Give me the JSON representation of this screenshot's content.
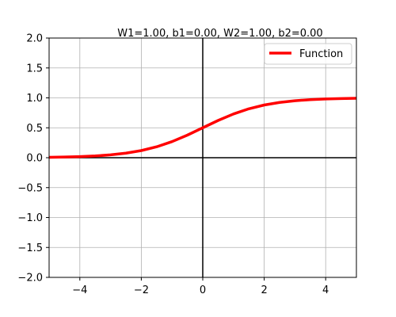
{
  "chart_data": {
    "type": "line",
    "title": "W1=1.00, b1=0.00, W2=1.00, b2=0.00",
    "xlabel": "",
    "ylabel": "",
    "xlim": [
      -5,
      5
    ],
    "ylim": [
      -2,
      2
    ],
    "x_ticks": [
      -4,
      -2,
      0,
      2,
      4
    ],
    "y_ticks": [
      -2.0,
      -1.5,
      -1.0,
      -0.5,
      0.0,
      0.5,
      1.0,
      1.5,
      2.0
    ],
    "x_tick_labels": [
      "−4",
      "−2",
      "0",
      "2",
      "4"
    ],
    "y_tick_labels": [
      "−2.0",
      "−1.5",
      "−1.0",
      "−0.5",
      "0.0",
      "0.5",
      "1.0",
      "1.5",
      "2.0"
    ],
    "grid": true,
    "legend_position": "top-right",
    "series": [
      {
        "name": "Function",
        "color": "#ff0000",
        "x": [
          -5,
          -4.5,
          -4,
          -3.5,
          -3,
          -2.5,
          -2,
          -1.5,
          -1,
          -0.5,
          0,
          0.5,
          1,
          1.5,
          2,
          2.5,
          3,
          3.5,
          4,
          4.5,
          5
        ],
        "y": [
          0.0067,
          0.011,
          0.018,
          0.0293,
          0.0474,
          0.0759,
          0.1192,
          0.1824,
          0.2689,
          0.3775,
          0.5,
          0.6225,
          0.7311,
          0.8176,
          0.8808,
          0.9241,
          0.9526,
          0.9707,
          0.982,
          0.989,
          0.9933
        ]
      }
    ]
  }
}
